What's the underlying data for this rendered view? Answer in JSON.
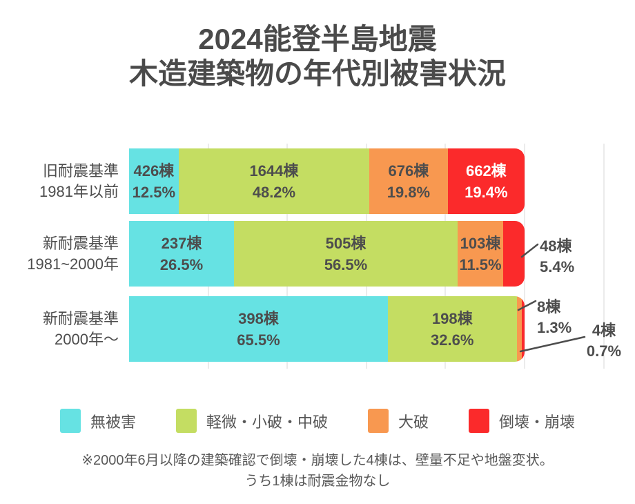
{
  "title": {
    "line1": "2024能登半島地震",
    "line2": "木造建築物の年代別被害状況"
  },
  "colors": {
    "background": "#ffffff",
    "title_text": "#4a4a4a",
    "label_text": "#4d4d4d",
    "legend_text": "#555555",
    "footnote_text": "#595959",
    "grid": "#ebebeb",
    "callout_line": "#4d4d4d",
    "series": [
      "#66E2E3",
      "#C4DD62",
      "#F89850",
      "#FB2A2B"
    ],
    "on_collapse_text": "#ffffff"
  },
  "chart_data": {
    "type": "bar",
    "orientation": "horizontal",
    "stacked": true,
    "unit": "棟",
    "value_suffix": "%",
    "xlim": [
      0,
      120
    ],
    "gridline_step_percent": 20,
    "grid": true,
    "legend_position": "bottom",
    "categories": [
      {
        "line1": "旧耐震基準",
        "line2": "1981年以前"
      },
      {
        "line1": "新耐震基準",
        "line2": "1981~2000年"
      },
      {
        "line1": "新耐震基準",
        "line2": "2000年～"
      }
    ],
    "series": [
      {
        "key": "no-damage",
        "name": "無被害",
        "counts": [
          426,
          237,
          398
        ],
        "percents": [
          12.5,
          26.5,
          65.5
        ]
      },
      {
        "key": "light-damage",
        "name": "軽微・小破・中破",
        "counts": [
          1644,
          505,
          198
        ],
        "percents": [
          48.2,
          56.5,
          32.6
        ]
      },
      {
        "key": "major-damage",
        "name": "大破",
        "counts": [
          676,
          103,
          8
        ],
        "percents": [
          19.8,
          11.5,
          1.3
        ]
      },
      {
        "key": "collapse",
        "name": "倒壊・崩壊",
        "counts": [
          662,
          48,
          4
        ],
        "percents": [
          19.4,
          5.4,
          0.7
        ]
      }
    ],
    "inside_label_min_percent": 10,
    "callouts": [
      {
        "row": 1,
        "series": 3
      },
      {
        "row": 2,
        "series": 2
      },
      {
        "row": 2,
        "series": 3
      }
    ]
  },
  "footnote": {
    "line1": "※2000年6月以降の建築確認で倒壊・崩壊した4棟は、壁量不足や地盤変状。",
    "line2": "うち1棟は耐震金物なし"
  }
}
